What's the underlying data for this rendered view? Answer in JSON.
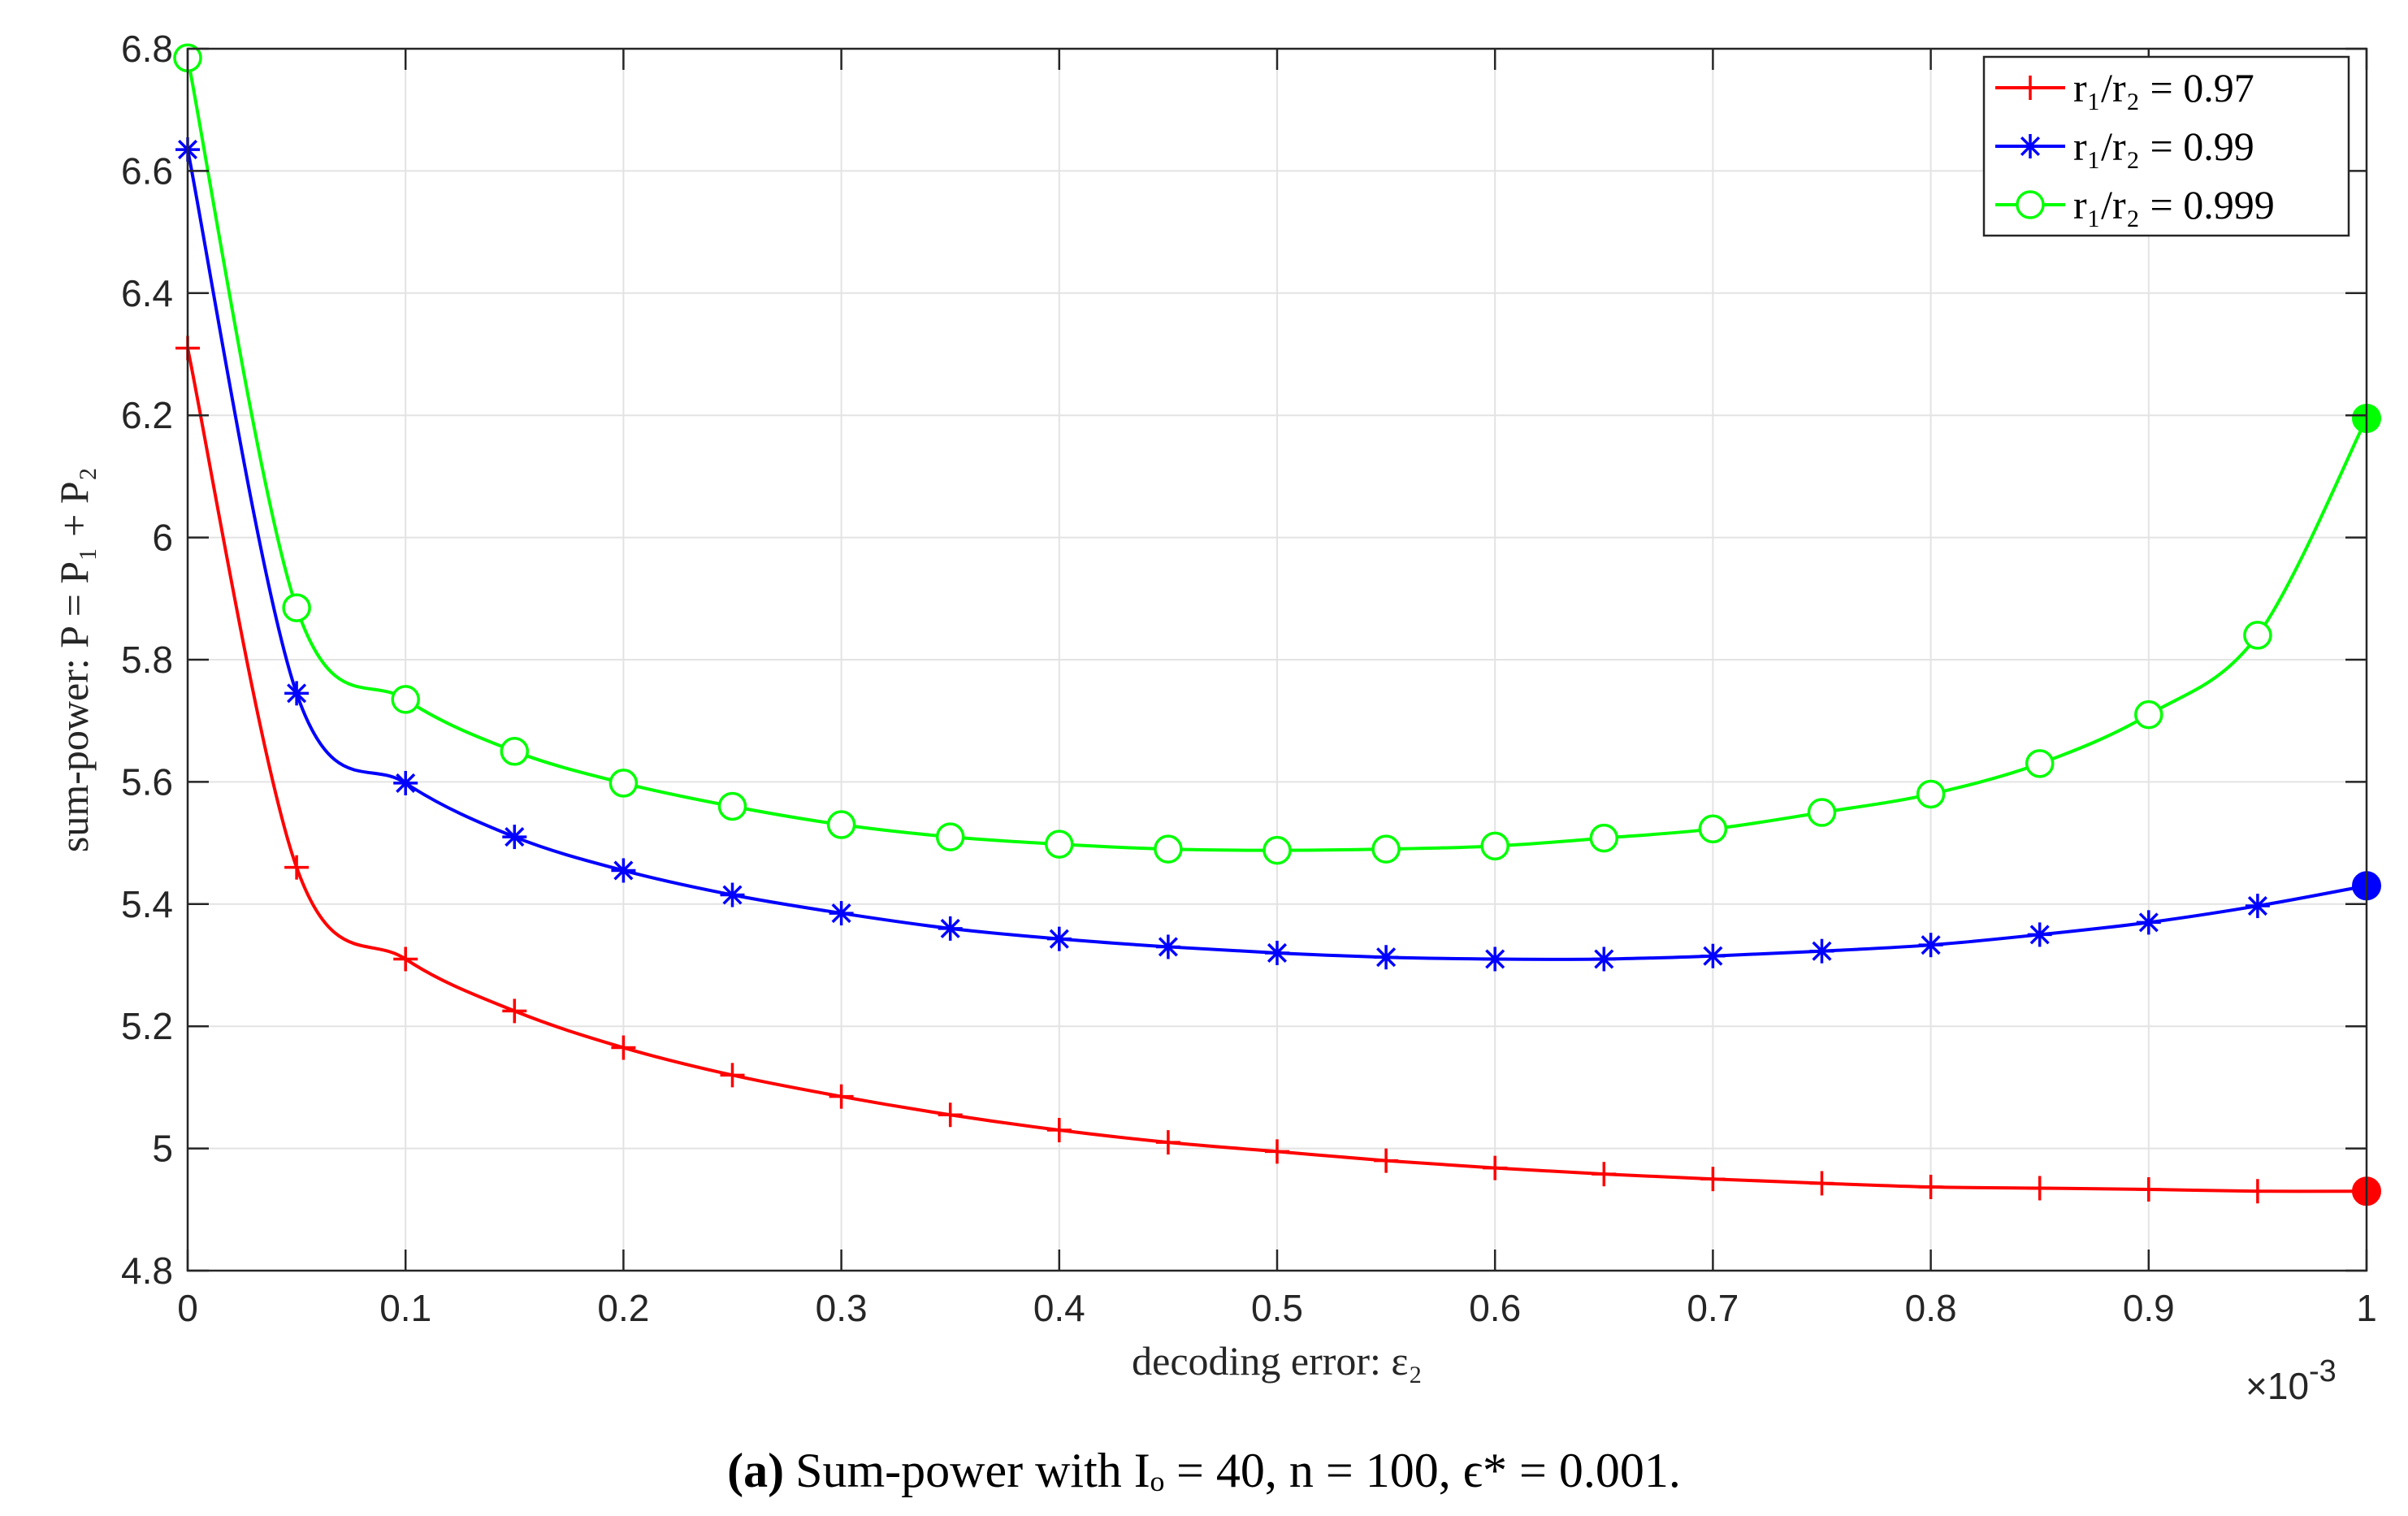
{
  "chart_data": {
    "type": "line",
    "xlabel": "decoding error: ε₂",
    "ylabel": "sum-power: P = P₁ + P₂",
    "x_exponent_label": "×10⁻³",
    "x_exponent_base": "×10",
    "x_exponent_power": "-3",
    "xlim": [
      0,
      1
    ],
    "ylim": [
      4.8,
      6.8
    ],
    "grid": true,
    "legend_position": "top-right",
    "x_ticks": [
      "0",
      "0.1",
      "0.2",
      "0.3",
      "0.4",
      "0.5",
      "0.6",
      "0.7",
      "0.8",
      "0.9",
      "1"
    ],
    "y_ticks": [
      "4.8",
      "5",
      "5.2",
      "5.4",
      "5.6",
      "5.8",
      "6",
      "6.2",
      "6.4",
      "6.6",
      "6.8"
    ],
    "x": [
      0,
      0.05,
      0.1,
      0.15,
      0.2,
      0.25,
      0.3,
      0.35,
      0.4,
      0.45,
      0.5,
      0.55,
      0.6,
      0.65,
      0.7,
      0.75,
      0.8,
      0.85,
      0.9,
      0.95,
      1.0
    ],
    "series": [
      {
        "name": "r₁/r₂ = 0.97",
        "legend_label": "r₁/r₂ = 0.97",
        "color": "#ff0000",
        "marker": "plus",
        "values": [
          6.31,
          5.46,
          5.31,
          5.225,
          5.165,
          5.12,
          5.085,
          5.055,
          5.03,
          5.01,
          4.995,
          4.98,
          4.968,
          4.958,
          4.95,
          4.943,
          4.937,
          4.935,
          4.933,
          4.93,
          4.93
        ],
        "endpoint": 4.93
      },
      {
        "name": "r₁/r₂ = 0.99",
        "legend_label": "r₁/r₂ = 0.99",
        "color": "#0000ff",
        "marker": "asterisk",
        "values": [
          6.635,
          5.745,
          5.598,
          5.51,
          5.455,
          5.415,
          5.385,
          5.36,
          5.343,
          5.33,
          5.32,
          5.313,
          5.31,
          5.31,
          5.315,
          5.323,
          5.333,
          5.35,
          5.37,
          5.397,
          5.43
        ],
        "endpoint": 5.43
      },
      {
        "name": "r₁/r₂ = 0.999",
        "legend_label": "r₁/r₂ = 0.999",
        "color": "#00ff00",
        "marker": "circle",
        "values": [
          6.785,
          5.885,
          5.735,
          5.65,
          5.598,
          5.56,
          5.53,
          5.51,
          5.498,
          5.49,
          5.488,
          5.49,
          5.495,
          5.508,
          5.523,
          5.55,
          5.58,
          5.63,
          5.71,
          5.84,
          6.195
        ],
        "endpoint": 6.195
      }
    ]
  },
  "caption": {
    "label": "(a)",
    "text": "Sum-power with Iₒ = 40, n = 100, ϵ* = 0.001."
  }
}
